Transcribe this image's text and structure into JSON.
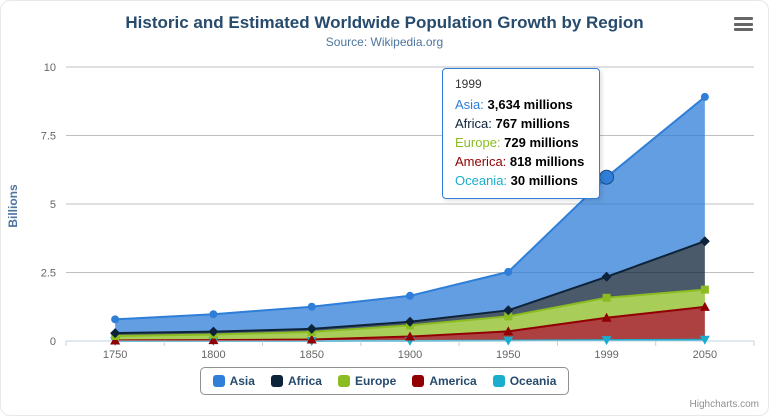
{
  "chart_data": {
    "type": "area",
    "stacking": "normal",
    "title": "Historic and Estimated Worldwide Population Growth by Region",
    "subtitle": "Source: Wikipedia.org",
    "ylabel": "Billions",
    "xlabel": "",
    "values_unit": "millions",
    "ylim": [
      0,
      10
    ],
    "yticks": [
      0,
      2.5,
      5,
      7.5,
      10
    ],
    "grid": true,
    "legend_position": "bottom",
    "categories": [
      "1750",
      "1800",
      "1850",
      "1900",
      "1950",
      "1999",
      "2050"
    ],
    "series": [
      {
        "name": "Asia",
        "color": "#2f7ed8",
        "marker": "circle",
        "values": [
          502,
          635,
          809,
          947,
          1402,
          3634,
          5268
        ]
      },
      {
        "name": "Africa",
        "color": "#0d233a",
        "marker": "diamond",
        "values": [
          106,
          107,
          111,
          133,
          221,
          767,
          1766
        ]
      },
      {
        "name": "Europe",
        "color": "#8bbc21",
        "marker": "square",
        "values": [
          163,
          203,
          276,
          408,
          547,
          729,
          628
        ]
      },
      {
        "name": "America",
        "color": "#910000",
        "marker": "triangle",
        "values": [
          18,
          31,
          54,
          156,
          339,
          818,
          1201
        ]
      },
      {
        "name": "Oceania",
        "color": "#1aadce",
        "marker": "triangle-down",
        "values": [
          2,
          2,
          2,
          6,
          13,
          30,
          46
        ]
      }
    ],
    "hovered_point": {
      "series": "Asia",
      "category": "1999",
      "category_index": 5
    }
  },
  "tooltip": {
    "header": "1999",
    "border_color": "#2f7ed8",
    "rows": [
      {
        "name": "Asia",
        "value": "3,634 millions"
      },
      {
        "name": "Africa",
        "value": "767 millions"
      },
      {
        "name": "Europe",
        "value": "729 millions"
      },
      {
        "name": "America",
        "value": "818 millions"
      },
      {
        "name": "Oceania",
        "value": "30 millions"
      }
    ]
  },
  "export_menu": {
    "icon": "hamburger-icon"
  },
  "credits": {
    "label": "Highcharts.com"
  }
}
